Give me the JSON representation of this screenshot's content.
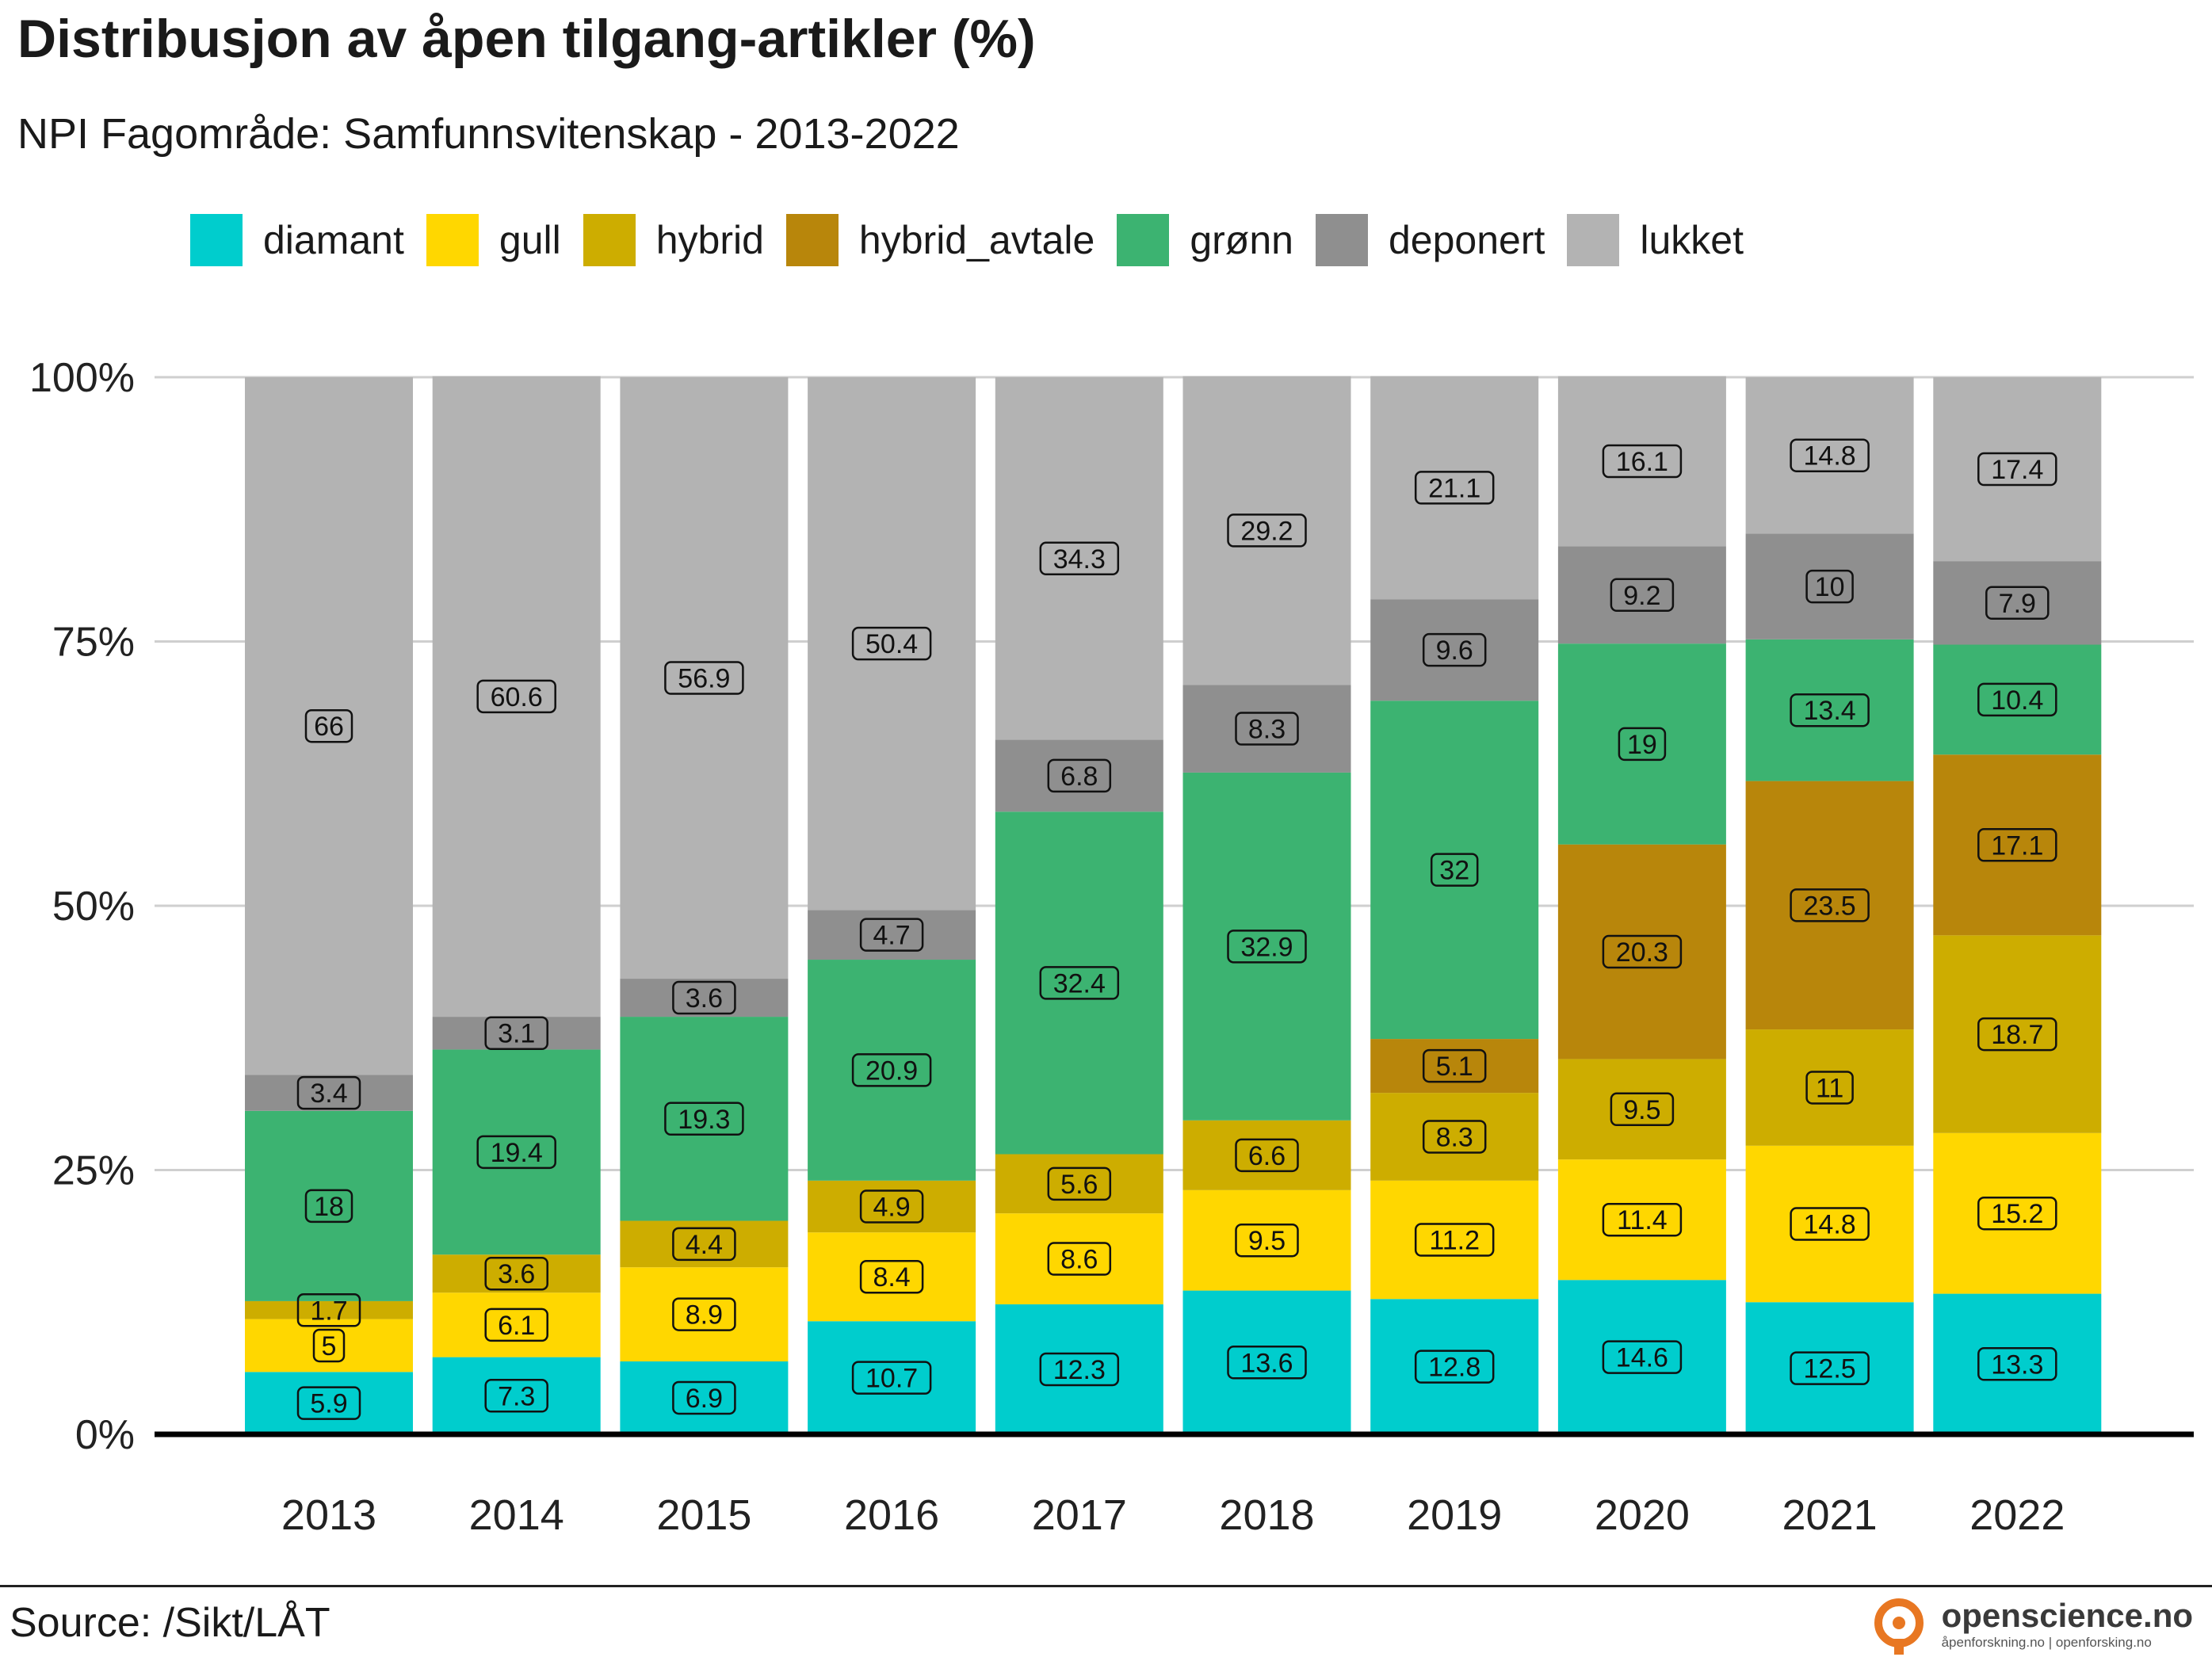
{
  "title": "Distribusjon av åpen tilgang-artikler (%)",
  "subtitle": "NPI Fagområde: Samfunnsvitenskap - 2013-2022",
  "source": "Source: /Sikt/LÅT",
  "brand": {
    "name": "openscience.no",
    "tagline": "åpenforskning.no | openforsking.no",
    "logo_icon": "open-access-lock-icon",
    "logo_color": "#E87722"
  },
  "chart_data": {
    "type": "bar",
    "stacked": true,
    "categories": [
      "2013",
      "2014",
      "2015",
      "2016",
      "2017",
      "2018",
      "2019",
      "2020",
      "2021",
      "2022"
    ],
    "ylim": [
      0,
      100
    ],
    "y_ticks": [
      0,
      25,
      50,
      75,
      100
    ],
    "y_tick_labels": [
      "0%",
      "25%",
      "50%",
      "75%",
      "100%"
    ],
    "grid": "horizontal",
    "legend_position": "top",
    "series": [
      {
        "name": "diamant",
        "color": "#00CDCD",
        "values": [
          5.9,
          7.3,
          6.9,
          10.7,
          12.3,
          13.6,
          12.8,
          14.6,
          12.5,
          13.3
        ]
      },
      {
        "name": "gull",
        "color": "#FFD700",
        "values": [
          5,
          6.1,
          8.9,
          8.4,
          8.6,
          9.5,
          11.2,
          11.4,
          14.8,
          15.2
        ]
      },
      {
        "name": "hybrid",
        "color": "#CDAD00",
        "values": [
          1.7,
          3.6,
          4.4,
          4.9,
          5.6,
          6.6,
          8.3,
          9.5,
          11,
          18.7
        ]
      },
      {
        "name": "hybrid_avtale",
        "color": "#B8860B",
        "values": [
          0,
          0,
          0,
          0,
          0,
          0,
          5.1,
          20.3,
          23.5,
          17.1
        ]
      },
      {
        "name": "grønn",
        "color": "#3CB371",
        "values": [
          18,
          19.4,
          19.3,
          20.9,
          32.4,
          32.9,
          32,
          19,
          13.4,
          10.4
        ]
      },
      {
        "name": "deponert",
        "color": "#8F8F8F",
        "values": [
          3.4,
          3.1,
          3.6,
          4.7,
          6.8,
          8.3,
          9.6,
          9.2,
          10,
          7.9
        ]
      },
      {
        "name": "lukket",
        "color": "#B3B3B3",
        "values": [
          66,
          60.6,
          56.9,
          50.4,
          34.3,
          29.2,
          21.1,
          16.1,
          14.8,
          17.4
        ]
      }
    ]
  }
}
